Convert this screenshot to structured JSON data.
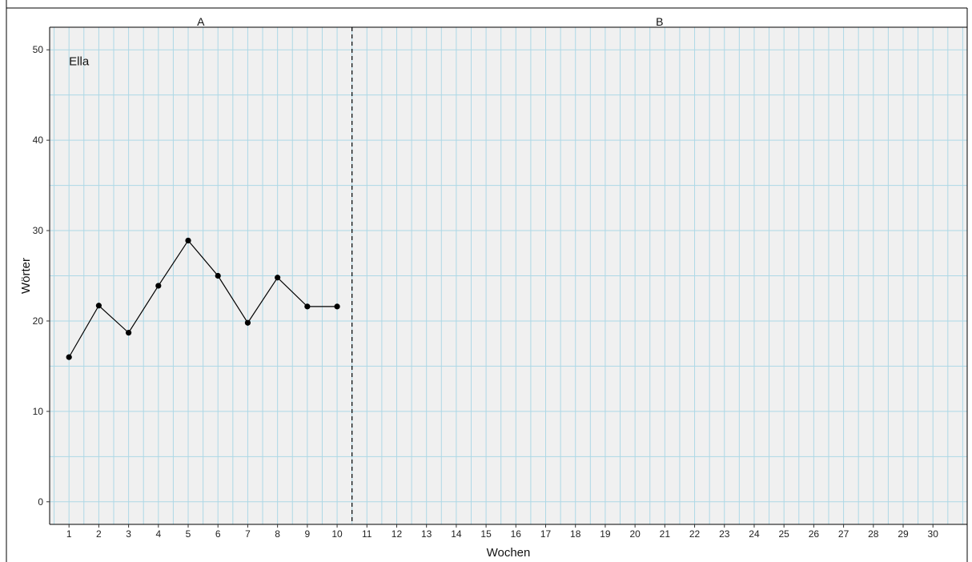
{
  "chart_data": {
    "type": "line",
    "title": "",
    "xlabel": "Wochen",
    "ylabel": "Wörter",
    "annotation": "Ella",
    "phases": [
      {
        "label": "A",
        "start": 1,
        "end": 10
      },
      {
        "label": "B",
        "start": 11,
        "end": 30
      }
    ],
    "phase_change_at": 10.5,
    "x_ticks": [
      1,
      2,
      3,
      4,
      5,
      6,
      7,
      8,
      9,
      10,
      11,
      12,
      13,
      14,
      15,
      16,
      17,
      18,
      19,
      20,
      21,
      22,
      23,
      24,
      25,
      26,
      27,
      28,
      29,
      30
    ],
    "x_tick_labels": [
      "1",
      "2",
      "3",
      "4",
      "5",
      "6",
      "7",
      "8",
      "9",
      "10",
      "11",
      "12",
      "13",
      "14",
      "15",
      "16",
      "17",
      "18",
      "19",
      "20",
      "21",
      "22",
      "23",
      "24",
      "25",
      "26",
      "27",
      "28",
      "29",
      "30"
    ],
    "xlim": [
      0.35,
      31.15
    ],
    "y_ticks": [
      0,
      10,
      20,
      30,
      40,
      50
    ],
    "y_tick_labels": [
      "0",
      "10",
      "20",
      "30",
      "40",
      "50"
    ],
    "ylim": [
      -2.5,
      52.5
    ],
    "grid": true,
    "series": [
      {
        "x": [
          1,
          2,
          3,
          4,
          5,
          6,
          7,
          8,
          9,
          10
        ],
        "values": [
          16,
          21.7,
          18.7,
          23.9,
          28.9,
          25,
          19.8,
          24.8,
          21.6,
          21.6
        ]
      }
    ],
    "colors": {
      "panel_bg": "#f0f0f0",
      "grid": "#add8e6",
      "line": "#000000",
      "point": "#000000"
    }
  }
}
